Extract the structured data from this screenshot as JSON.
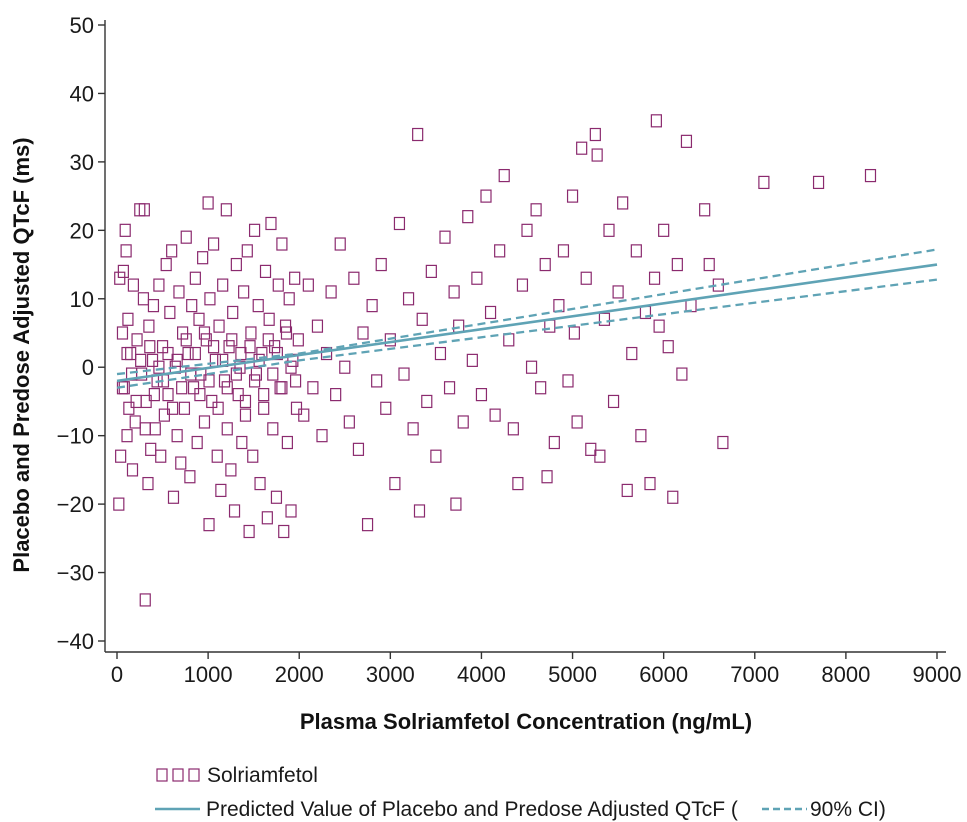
{
  "chart_data": {
    "type": "scatter",
    "title": "",
    "xlabel": "Plasma Solriamfetol Concentration (ng/mL)",
    "ylabel": "Placebo and Predose Adjusted QTcF (ms)",
    "xlim": [
      0,
      9000
    ],
    "ylim": [
      -40,
      50
    ],
    "x_ticks": [
      0,
      1000,
      2000,
      3000,
      4000,
      5000,
      6000,
      7000,
      8000,
      9000
    ],
    "y_ticks": [
      -40,
      -30,
      -20,
      -10,
      0,
      10,
      20,
      30,
      40,
      50
    ],
    "x_tick_labels": [
      "0",
      "1000",
      "2000",
      "3000",
      "4000",
      "5000",
      "6000",
      "7000",
      "8000",
      "9000"
    ],
    "y_tick_labels": [
      "−40",
      "−30",
      "−20",
      "−10",
      "0",
      "10",
      "20",
      "30",
      "40",
      "50"
    ],
    "grid": false,
    "marker_color": "#8b2a6e",
    "line_color": "#5fa3b5",
    "series": [
      {
        "name": "Solriamfetol",
        "kind": "scatter",
        "marker": "open-square",
        "points": [
          [
            20,
            -20
          ],
          [
            30,
            13
          ],
          [
            40,
            -13
          ],
          [
            60,
            5
          ],
          [
            70,
            14
          ],
          [
            80,
            -3
          ],
          [
            90,
            20
          ],
          [
            100,
            17
          ],
          [
            110,
            -10
          ],
          [
            120,
            7
          ],
          [
            130,
            -6
          ],
          [
            150,
            2
          ],
          [
            170,
            -15
          ],
          [
            180,
            12
          ],
          [
            200,
            -8
          ],
          [
            220,
            4
          ],
          [
            250,
            23
          ],
          [
            270,
            -1
          ],
          [
            290,
            10
          ],
          [
            300,
            23
          ],
          [
            310,
            -34
          ],
          [
            320,
            -5
          ],
          [
            340,
            -17
          ],
          [
            350,
            6
          ],
          [
            370,
            -12
          ],
          [
            390,
            1
          ],
          [
            400,
            9
          ],
          [
            420,
            -9
          ],
          [
            440,
            -2
          ],
          [
            460,
            12
          ],
          [
            480,
            -13
          ],
          [
            500,
            3
          ],
          [
            520,
            -7
          ],
          [
            540,
            15
          ],
          [
            560,
            -4
          ],
          [
            580,
            8
          ],
          [
            600,
            17
          ],
          [
            620,
            -19
          ],
          [
            640,
            0
          ],
          [
            660,
            -10
          ],
          [
            680,
            11
          ],
          [
            700,
            -14
          ],
          [
            720,
            5
          ],
          [
            740,
            -6
          ],
          [
            760,
            19
          ],
          [
            780,
            2
          ],
          [
            800,
            -16
          ],
          [
            820,
            9
          ],
          [
            840,
            -3
          ],
          [
            860,
            13
          ],
          [
            880,
            -11
          ],
          [
            900,
            7
          ],
          [
            920,
            -1
          ],
          [
            940,
            16
          ],
          [
            960,
            -8
          ],
          [
            980,
            4
          ],
          [
            1000,
            24
          ],
          [
            1010,
            -23
          ],
          [
            1020,
            10
          ],
          [
            1040,
            -5
          ],
          [
            1060,
            18
          ],
          [
            1080,
            1
          ],
          [
            1100,
            -13
          ],
          [
            1120,
            6
          ],
          [
            1140,
            -18
          ],
          [
            1160,
            12
          ],
          [
            1180,
            -2
          ],
          [
            1200,
            23
          ],
          [
            1210,
            -9
          ],
          [
            1230,
            3
          ],
          [
            1250,
            -15
          ],
          [
            1270,
            8
          ],
          [
            1290,
            -21
          ],
          [
            1310,
            15
          ],
          [
            1330,
            -4
          ],
          [
            1350,
            0
          ],
          [
            1370,
            -11
          ],
          [
            1390,
            11
          ],
          [
            1410,
            -7
          ],
          [
            1430,
            17
          ],
          [
            1450,
            -24
          ],
          [
            1470,
            5
          ],
          [
            1490,
            -13
          ],
          [
            1510,
            20
          ],
          [
            1530,
            -1
          ],
          [
            1550,
            9
          ],
          [
            1570,
            -17
          ],
          [
            1590,
            2
          ],
          [
            1610,
            -6
          ],
          [
            1630,
            14
          ],
          [
            1650,
            -22
          ],
          [
            1670,
            7
          ],
          [
            1690,
            21
          ],
          [
            1710,
            -9
          ],
          [
            1730,
            3
          ],
          [
            1750,
            -19
          ],
          [
            1770,
            12
          ],
          [
            1790,
            -3
          ],
          [
            1810,
            18
          ],
          [
            1830,
            -24
          ],
          [
            1850,
            6
          ],
          [
            1870,
            -11
          ],
          [
            1890,
            10
          ],
          [
            1910,
            -21
          ],
          [
            1930,
            1
          ],
          [
            1950,
            13
          ],
          [
            1970,
            -6
          ],
          [
            1990,
            4
          ],
          [
            60,
            -3
          ],
          [
            110,
            2
          ],
          [
            160,
            -1
          ],
          [
            210,
            -5
          ],
          [
            260,
            1
          ],
          [
            310,
            -9
          ],
          [
            360,
            3
          ],
          [
            410,
            -4
          ],
          [
            460,
            0
          ],
          [
            510,
            -2
          ],
          [
            560,
            2
          ],
          [
            610,
            -6
          ],
          [
            660,
            1
          ],
          [
            710,
            -3
          ],
          [
            760,
            4
          ],
          [
            810,
            -1
          ],
          [
            860,
            2
          ],
          [
            910,
            -4
          ],
          [
            960,
            5
          ],
          [
            1010,
            -2
          ],
          [
            1060,
            3
          ],
          [
            1110,
            -6
          ],
          [
            1160,
            1
          ],
          [
            1210,
            -3
          ],
          [
            1260,
            4
          ],
          [
            1310,
            -1
          ],
          [
            1360,
            2
          ],
          [
            1410,
            -5
          ],
          [
            1460,
            3
          ],
          [
            1510,
            -2
          ],
          [
            1560,
            1
          ],
          [
            1610,
            -4
          ],
          [
            1660,
            4
          ],
          [
            1710,
            -1
          ],
          [
            1760,
            2
          ],
          [
            1810,
            -3
          ],
          [
            1860,
            5
          ],
          [
            1910,
            0
          ],
          [
            1960,
            -2
          ],
          [
            2050,
            -7
          ],
          [
            2100,
            12
          ],
          [
            2150,
            -3
          ],
          [
            2200,
            6
          ],
          [
            2250,
            -10
          ],
          [
            2300,
            2
          ],
          [
            2350,
            11
          ],
          [
            2400,
            -4
          ],
          [
            2450,
            18
          ],
          [
            2500,
            0
          ],
          [
            2550,
            -8
          ],
          [
            2600,
            13
          ],
          [
            2650,
            -12
          ],
          [
            2700,
            5
          ],
          [
            2750,
            -23
          ],
          [
            2800,
            9
          ],
          [
            2850,
            -2
          ],
          [
            2900,
            15
          ],
          [
            2950,
            -6
          ],
          [
            3000,
            4
          ],
          [
            3050,
            -17
          ],
          [
            3100,
            21
          ],
          [
            3150,
            -1
          ],
          [
            3200,
            10
          ],
          [
            3250,
            -9
          ],
          [
            3300,
            34
          ],
          [
            3320,
            -21
          ],
          [
            3350,
            7
          ],
          [
            3400,
            -5
          ],
          [
            3450,
            14
          ],
          [
            3500,
            -13
          ],
          [
            3550,
            2
          ],
          [
            3600,
            19
          ],
          [
            3650,
            -3
          ],
          [
            3700,
            11
          ],
          [
            3720,
            -20
          ],
          [
            3750,
            6
          ],
          [
            3800,
            -8
          ],
          [
            3850,
            22
          ],
          [
            3900,
            1
          ],
          [
            3950,
            13
          ],
          [
            4000,
            -4
          ],
          [
            4050,
            25
          ],
          [
            4100,
            8
          ],
          [
            4150,
            -7
          ],
          [
            4200,
            17
          ],
          [
            4250,
            28
          ],
          [
            4300,
            4
          ],
          [
            4350,
            -9
          ],
          [
            4400,
            -17
          ],
          [
            4450,
            12
          ],
          [
            4500,
            20
          ],
          [
            4550,
            0
          ],
          [
            4600,
            23
          ],
          [
            4650,
            -3
          ],
          [
            4700,
            15
          ],
          [
            4720,
            -16
          ],
          [
            4750,
            6
          ],
          [
            4800,
            -11
          ],
          [
            4850,
            9
          ],
          [
            4900,
            17
          ],
          [
            4950,
            -2
          ],
          [
            5000,
            25
          ],
          [
            5020,
            5
          ],
          [
            5050,
            -8
          ],
          [
            5100,
            32
          ],
          [
            5150,
            13
          ],
          [
            5200,
            -12
          ],
          [
            5250,
            34
          ],
          [
            5270,
            31
          ],
          [
            5300,
            -13
          ],
          [
            5350,
            7
          ],
          [
            5400,
            20
          ],
          [
            5450,
            -5
          ],
          [
            5500,
            11
          ],
          [
            5550,
            24
          ],
          [
            5600,
            -18
          ],
          [
            5650,
            2
          ],
          [
            5700,
            17
          ],
          [
            5750,
            -10
          ],
          [
            5800,
            8
          ],
          [
            5850,
            -17
          ],
          [
            5900,
            13
          ],
          [
            5920,
            36
          ],
          [
            5950,
            6
          ],
          [
            6000,
            20
          ],
          [
            6050,
            3
          ],
          [
            6100,
            -19
          ],
          [
            6150,
            15
          ],
          [
            6200,
            -1
          ],
          [
            6250,
            33
          ],
          [
            6300,
            9
          ],
          [
            6450,
            23
          ],
          [
            6500,
            15
          ],
          [
            6600,
            12
          ],
          [
            6650,
            -11
          ],
          [
            7100,
            27
          ],
          [
            7700,
            27
          ],
          [
            8270,
            28
          ]
        ]
      },
      {
        "name": "Predicted Value of Placebo and Predose Adjusted QTcF",
        "kind": "line",
        "x": [
          0,
          9000
        ],
        "y": [
          -2.0,
          15.0
        ]
      },
      {
        "name": "90% CI",
        "kind": "line-dashed",
        "upper": {
          "x": [
            0,
            2000,
            9000
          ],
          "y": [
            -1.0,
            2.0,
            17.2
          ]
        },
        "lower": {
          "x": [
            0,
            2000,
            9000
          ],
          "y": [
            -3.0,
            1.0,
            12.8
          ]
        }
      }
    ],
    "legend": {
      "placement": "bottom",
      "scatter_label": "Solriamfetol",
      "line_label": "Predicted Value of Placebo and Predose Adjusted QTcF (",
      "ci_label": "90% CI)"
    }
  }
}
